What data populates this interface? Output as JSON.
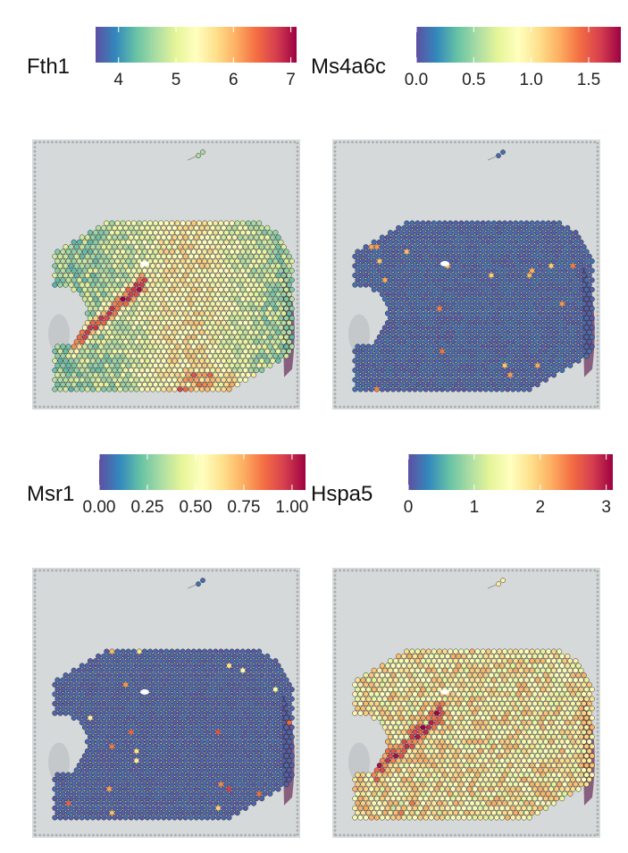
{
  "chart_data": [
    {
      "type": "heatmap",
      "gene": "Fth1",
      "legend": {
        "title": "Fth1",
        "ticks": [
          "4",
          "5",
          "6",
          "7"
        ],
        "tick_values": [
          4,
          5,
          6,
          7
        ],
        "range": [
          3.6,
          7.1
        ]
      },
      "pattern": "high",
      "palette": [
        "#5e4fa2",
        "#3288bd",
        "#66c2a5",
        "#abdda4",
        "#e6f598",
        "#ffffbf",
        "#fee08b",
        "#fdae61",
        "#f46d43",
        "#d53e4f",
        "#9e0142"
      ]
    },
    {
      "type": "heatmap",
      "gene": "Ms4a6c",
      "legend": {
        "title": "Ms4a6c",
        "ticks": [
          "0.0",
          "0.5",
          "1.0",
          "1.5"
        ],
        "tick_values": [
          0,
          0.5,
          1.0,
          1.5
        ],
        "range": [
          0,
          1.78
        ]
      },
      "pattern": "sparse",
      "palette": [
        "#5e4fa2",
        "#3288bd",
        "#66c2a5",
        "#abdda4",
        "#e6f598",
        "#ffffbf",
        "#fee08b",
        "#fdae61",
        "#f46d43",
        "#d53e4f",
        "#9e0142"
      ]
    },
    {
      "type": "heatmap",
      "gene": "Msr1",
      "legend": {
        "title": "Msr1",
        "ticks": [
          "0.00",
          "0.25",
          "0.50",
          "0.75",
          "1.00"
        ],
        "tick_values": [
          0,
          0.25,
          0.5,
          0.75,
          1.0
        ],
        "range": [
          0,
          1.07
        ]
      },
      "pattern": "very-sparse",
      "palette": [
        "#5e4fa2",
        "#3288bd",
        "#66c2a5",
        "#abdda4",
        "#e6f598",
        "#ffffbf",
        "#fee08b",
        "#fdae61",
        "#f46d43",
        "#d53e4f",
        "#9e0142"
      ]
    },
    {
      "type": "heatmap",
      "gene": "Hspa5",
      "legend": {
        "title": "Hspa5",
        "ticks": [
          "0",
          "1",
          "2",
          "3"
        ],
        "tick_values": [
          0,
          1,
          2,
          3
        ],
        "range": [
          0,
          3.1
        ]
      },
      "pattern": "mid-high",
      "palette": [
        "#5e4fa2",
        "#3288bd",
        "#66c2a5",
        "#abdda4",
        "#e6f598",
        "#ffffbf",
        "#fee08b",
        "#fdae61",
        "#f46d43",
        "#d53e4f",
        "#9e0142"
      ]
    }
  ],
  "colors": {
    "tissue_bg": "#d6d9da",
    "fiducial": "#a9adb0",
    "tissue_edge": "#7a4a6e"
  }
}
